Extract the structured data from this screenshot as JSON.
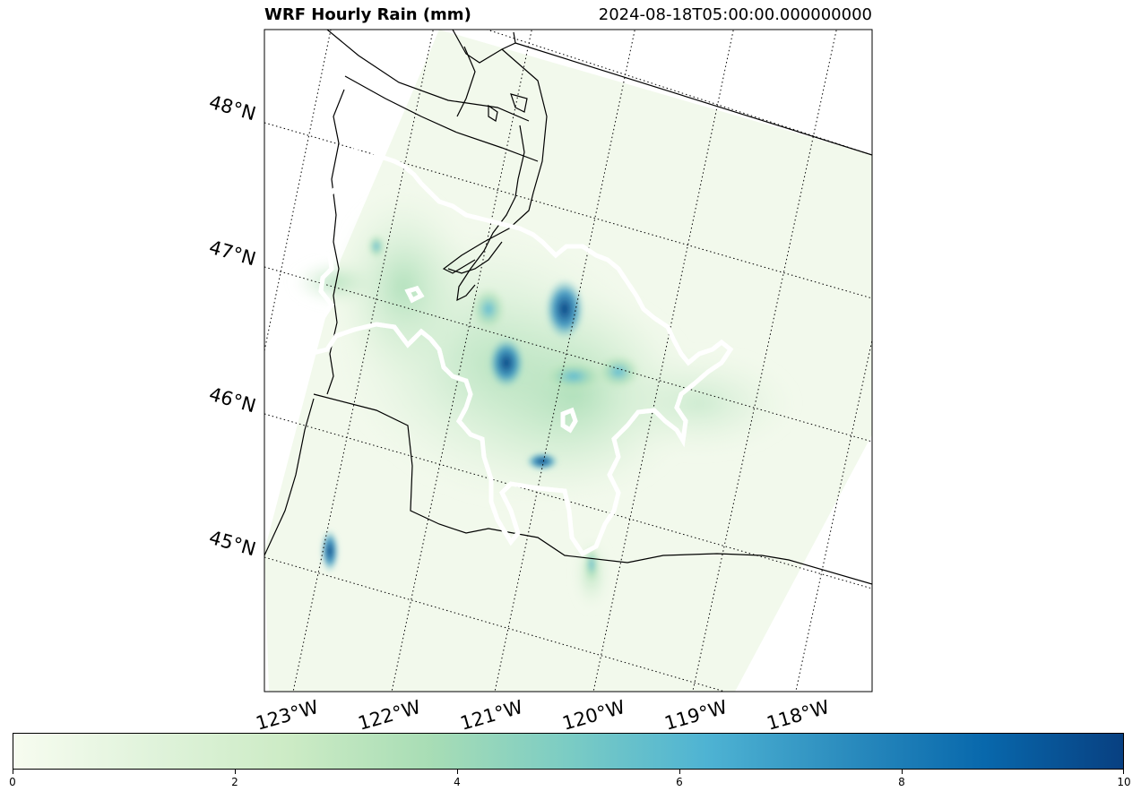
{
  "title": "WRF Hourly Rain (mm)",
  "timestamp": "2024-08-18T05:00:00.000000000",
  "latitude_labels": [
    "48°N",
    "47°N",
    "46°N",
    "45°N"
  ],
  "longitude_labels": [
    "123°W",
    "122°W",
    "121°W",
    "120°W",
    "119°W",
    "118°W"
  ],
  "colorbar": {
    "min": 0,
    "max": 10,
    "ticks": [
      "0",
      "2",
      "4",
      "6",
      "8",
      "10"
    ],
    "colormap": [
      "#f7fcf0",
      "#e0f3db",
      "#ccebc5",
      "#a8ddb5",
      "#7bccc4",
      "#4eb3d3",
      "#2b8cbe",
      "#0868ac",
      "#084081"
    ]
  },
  "colors": {
    "domain_background": "#f2f9ec",
    "coastline": "#000000",
    "outline_dash": "#000000"
  },
  "rain_cells_mm": [
    9,
    8,
    9,
    8,
    7,
    7,
    6,
    5,
    3,
    2
  ]
}
